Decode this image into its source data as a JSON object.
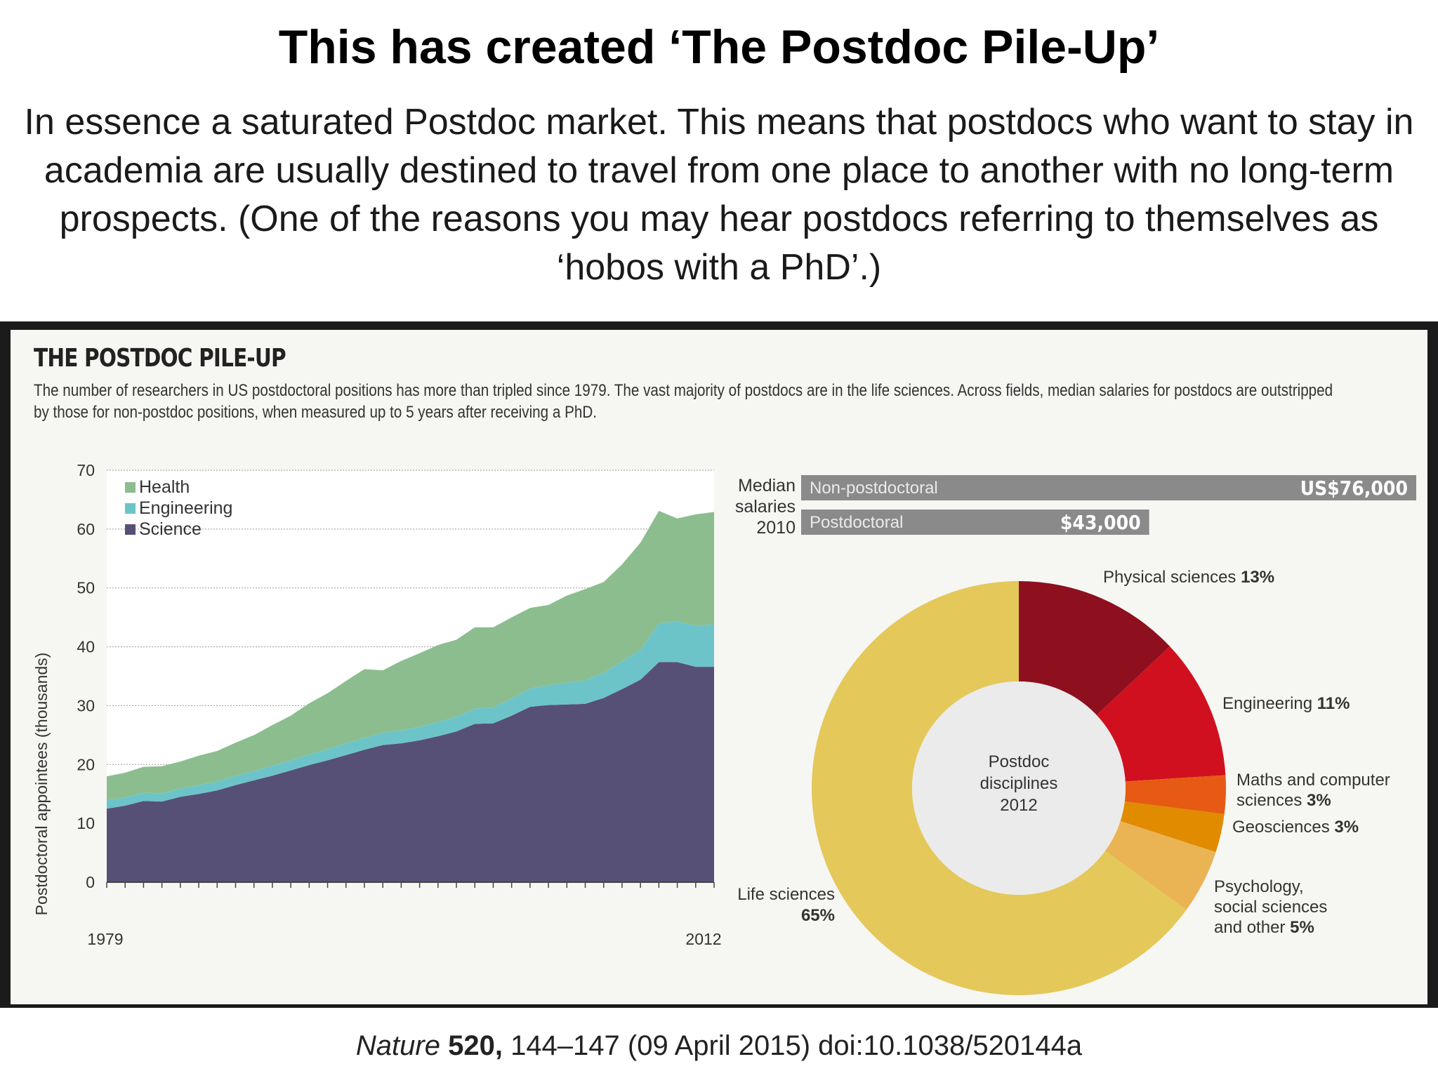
{
  "slide": {
    "title": "This has created ‘The Postdoc Pile-Up’",
    "body": "In essence a saturated Postdoc market. This means that postdocs who want to stay in academia are usually destined to travel from one place to another with no long-term prospects. (One of the reasons you may hear postdocs referring to themselves as ‘hobos with a PhD’.)"
  },
  "citation": {
    "journal": "Nature",
    "volume": "520,",
    "rest": " 144–147 (09 April 2015) doi:10.1038/520144a"
  },
  "infographic": {
    "title": "THE POSTDOC PILE-UP",
    "description": "The number of researchers in US postdoctoral positions has more than tripled since 1979. The vast majority of postdocs are in the life sciences. Across fields, median salaries for postdocs are outstripped by those for non-postdoc positions, when measured up to 5 years after receiving a PhD."
  },
  "colors": {
    "health": "#8cbd8f",
    "engineering": "#6cc4c8",
    "science": "#565076",
    "salary_bar": "#8a8a8a"
  },
  "chart_data": [
    {
      "type": "area",
      "stacked": true,
      "ylabel": "Postdoctoral appointees (thousands)",
      "ylim": [
        0,
        70
      ],
      "yticks": [
        0,
        10,
        20,
        30,
        40,
        50,
        60,
        70
      ],
      "xlim": [
        1979,
        2012
      ],
      "xtick_labels": [
        "1979",
        "2012"
      ],
      "grid": true,
      "legend": "top-left",
      "x": [
        1979,
        1980,
        1981,
        1982,
        1983,
        1984,
        1985,
        1986,
        1987,
        1988,
        1989,
        1990,
        1991,
        1992,
        1993,
        1994,
        1995,
        1996,
        1997,
        1998,
        1999,
        2000,
        2001,
        2002,
        2003,
        2004,
        2005,
        2006,
        2007,
        2008,
        2009,
        2010,
        2011,
        2012
      ],
      "series": [
        {
          "name": "Science",
          "values": [
            12.5,
            13.0,
            13.8,
            13.7,
            14.5,
            15.0,
            15.6,
            16.5,
            17.3,
            18.1,
            19.0,
            19.9,
            20.7,
            21.6,
            22.5,
            23.3,
            23.6,
            24.1,
            24.8,
            25.6,
            26.9,
            27.0,
            28.3,
            29.8,
            30.1,
            30.2,
            30.3,
            31.3,
            32.8,
            34.4,
            37.4,
            37.4,
            36.6,
            36.6
          ]
        },
        {
          "name": "Engineering",
          "values": [
            1.4,
            1.4,
            1.4,
            1.4,
            1.4,
            1.5,
            1.5,
            1.6,
            1.6,
            1.7,
            1.7,
            1.8,
            1.9,
            2.0,
            2.0,
            2.1,
            2.2,
            2.3,
            2.4,
            2.5,
            2.6,
            2.7,
            2.9,
            3.1,
            3.4,
            3.7,
            4.0,
            4.3,
            4.7,
            5.1,
            6.6,
            6.9,
            7.0,
            7.2
          ]
        },
        {
          "name": "Health",
          "values": [
            4.1,
            4.2,
            4.4,
            4.6,
            4.6,
            5.0,
            5.2,
            5.6,
            6.1,
            6.9,
            7.6,
            8.7,
            9.5,
            10.6,
            11.7,
            10.6,
            11.8,
            12.5,
            13.1,
            13.1,
            13.8,
            13.6,
            13.8,
            13.7,
            13.6,
            14.8,
            15.5,
            15.4,
            16.5,
            18.2,
            19.1,
            17.5,
            18.9,
            19.1
          ]
        }
      ]
    },
    {
      "type": "bar",
      "orientation": "horizontal",
      "side_label": [
        "Median",
        "salaries",
        "2010"
      ],
      "categories": [
        "Non-postdoctoral",
        "Postdoctoral"
      ],
      "values": [
        76000,
        43000
      ],
      "value_labels": [
        "US$76,000",
        "$43,000"
      ]
    },
    {
      "type": "pie",
      "donut": true,
      "center_label": [
        "Postdoc",
        "disciplines",
        "2012"
      ],
      "slices": [
        {
          "label": [
            "Physical sciences"
          ],
          "pct_text": "13%",
          "value": 13,
          "color": "#8e0f1e"
        },
        {
          "label": [
            "Engineering"
          ],
          "pct_text": "11%",
          "value": 11,
          "color": "#d0101f"
        },
        {
          "label": [
            "Maths and computer",
            "sciences"
          ],
          "pct_text": "3%",
          "value": 3,
          "color": "#e65a14"
        },
        {
          "label": [
            "Geosciences"
          ],
          "pct_text": "3%",
          "value": 3,
          "color": "#e08b00"
        },
        {
          "label": [
            "Psychology,",
            "social sciences",
            "and other"
          ],
          "pct_text": "5%",
          "value": 5,
          "color": "#eab353"
        },
        {
          "label": [
            "Life sciences"
          ],
          "pct_text": "65%",
          "value": 65,
          "color": "#e4c85a"
        }
      ]
    }
  ]
}
